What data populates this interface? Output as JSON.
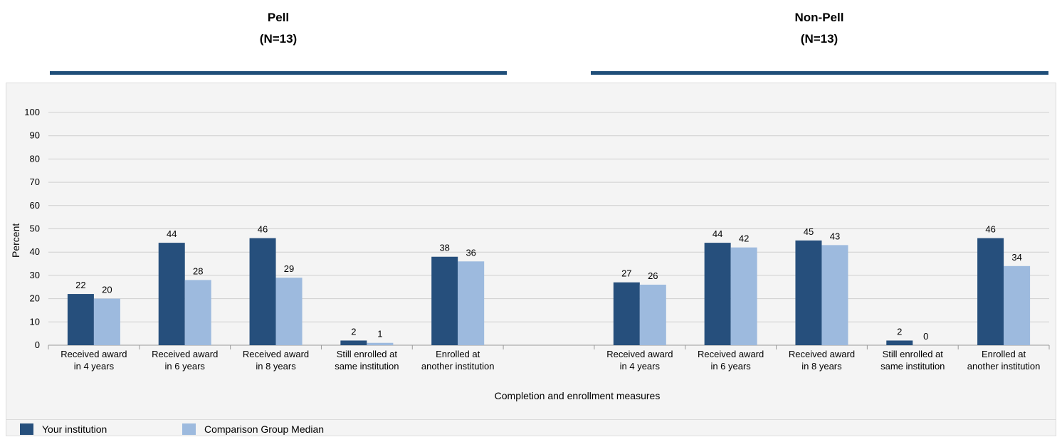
{
  "headers": {
    "pell": {
      "name": "Pell",
      "n": "(N=13)"
    },
    "nonpell": {
      "name": "Non-Pell",
      "n": "(N=13)"
    }
  },
  "legend": {
    "your_institution": "Your institution",
    "comparison": "Comparison Group Median"
  },
  "colors": {
    "your_institution": "#264f7c",
    "comparison": "#9dbade",
    "header_rule": "#1f4e79"
  },
  "chart_data": {
    "type": "bar",
    "ylabel": "Percent",
    "xlabel": "Completion and enrollment measures",
    "ylim": [
      0,
      100
    ],
    "yticks": [
      0,
      10,
      20,
      30,
      40,
      50,
      60,
      70,
      80,
      90,
      100
    ],
    "grid": true,
    "legend_position": "bottom",
    "categories": [
      [
        "Received award",
        "in 4 years"
      ],
      [
        "Received award",
        "in 6 years"
      ],
      [
        "Received award",
        "in 8 years"
      ],
      [
        "Still enrolled at",
        "same institution"
      ],
      [
        "Enrolled at",
        "another institution"
      ]
    ],
    "groups": [
      {
        "name": "Pell",
        "series": [
          {
            "name": "Your institution",
            "values": [
              22,
              44,
              46,
              2,
              38
            ]
          },
          {
            "name": "Comparison Group Median",
            "values": [
              20,
              28,
              29,
              1,
              36
            ]
          }
        ]
      },
      {
        "name": "Non-Pell",
        "series": [
          {
            "name": "Your institution",
            "values": [
              27,
              44,
              45,
              2,
              46
            ]
          },
          {
            "name": "Comparison Group Median",
            "values": [
              26,
              42,
              43,
              0,
              34
            ]
          }
        ]
      }
    ]
  }
}
